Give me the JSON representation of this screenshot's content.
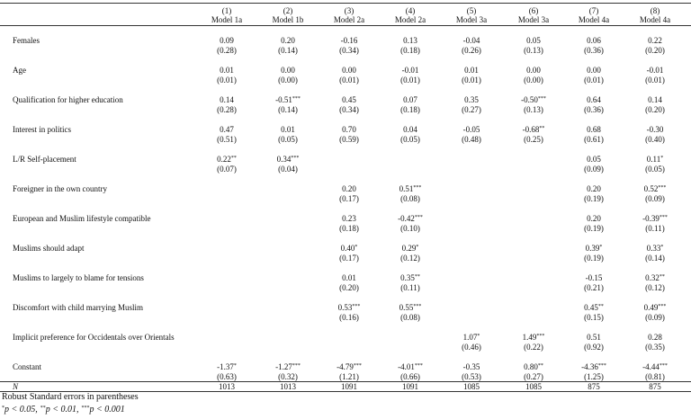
{
  "table": {
    "header": {
      "numbers": [
        "(1)",
        "(2)",
        "(3)",
        "(4)",
        "(5)",
        "(6)",
        "(7)",
        "(8)"
      ],
      "models": [
        "Model 1a",
        "Model 1b",
        "Model 2a",
        "Model 2a",
        "Model 3a",
        "Model 3a",
        "Model 4a",
        "Model 4a"
      ]
    },
    "rows": [
      {
        "label": "Females",
        "coef": [
          "0.09",
          "0.20",
          "-0.16",
          "0.13",
          "-0.04",
          "0.05",
          "0.06",
          "0.22"
        ],
        "stars": [
          null,
          null,
          null,
          null,
          null,
          null,
          null,
          null
        ],
        "se": [
          "(0.28)",
          "(0.14)",
          "(0.34)",
          "(0.18)",
          "(0.26)",
          "(0.13)",
          "(0.36)",
          "(0.20)"
        ]
      },
      {
        "label": "Age",
        "coef": [
          "0.01",
          "0.00",
          "0.00",
          "-0.01",
          "0.01",
          "0.00",
          "0.00",
          "-0.01"
        ],
        "stars": [
          null,
          null,
          null,
          null,
          null,
          null,
          null,
          null
        ],
        "se": [
          "(0.01)",
          "(0.00)",
          "(0.01)",
          "(0.01)",
          "(0.01)",
          "(0.00)",
          "(0.01)",
          "(0.01)"
        ]
      },
      {
        "label": "Qualification for higher education",
        "coef": [
          "0.14",
          "-0.51",
          "0.45",
          "0.07",
          "0.35",
          "-0.50",
          "0.64",
          "0.14"
        ],
        "stars": [
          null,
          "***",
          null,
          null,
          null,
          "***",
          null,
          null
        ],
        "se": [
          "(0.28)",
          "(0.14)",
          "(0.34)",
          "(0.18)",
          "(0.27)",
          "(0.13)",
          "(0.36)",
          "(0.20)"
        ]
      },
      {
        "label": "Interest in politics",
        "coef": [
          "0.47",
          "0.01",
          "0.70",
          "0.04",
          "-0.05",
          "-0.68",
          "0.68",
          "-0.30"
        ],
        "stars": [
          null,
          null,
          null,
          null,
          null,
          "**",
          null,
          null
        ],
        "se": [
          "(0.51)",
          "(0.05)",
          "(0.59)",
          "(0.05)",
          "(0.48)",
          "(0.25)",
          "(0.61)",
          "(0.40)"
        ]
      },
      {
        "label": "L/R Self-placement",
        "coef": [
          "0.22",
          "0.34",
          null,
          null,
          null,
          null,
          "0.05",
          "0.11"
        ],
        "stars": [
          "**",
          "***",
          null,
          null,
          null,
          null,
          null,
          "*"
        ],
        "se": [
          "(0.07)",
          "(0.04)",
          null,
          null,
          null,
          null,
          "(0.09)",
          "(0.05)"
        ]
      },
      {
        "label": "Foreigner in the own country",
        "coef": [
          null,
          null,
          "0.20",
          "0.51",
          null,
          null,
          "0.20",
          "0.52"
        ],
        "stars": [
          null,
          null,
          null,
          "***",
          null,
          null,
          null,
          "***"
        ],
        "se": [
          null,
          null,
          "(0.17)",
          "(0.08)",
          null,
          null,
          "(0.19)",
          "(0.09)"
        ]
      },
      {
        "label": "European and Muslim lifestyle compatible",
        "coef": [
          null,
          null,
          "0.23",
          "-0.42",
          null,
          null,
          "0.20",
          "-0.39"
        ],
        "stars": [
          null,
          null,
          null,
          "***",
          null,
          null,
          null,
          "***"
        ],
        "se": [
          null,
          null,
          "(0.18)",
          "(0.10)",
          null,
          null,
          "(0.19)",
          "(0.11)"
        ]
      },
      {
        "label": "Muslims should adapt",
        "coef": [
          null,
          null,
          "0.40",
          "0.29",
          null,
          null,
          "0.39",
          "0.33"
        ],
        "stars": [
          null,
          null,
          "*",
          "*",
          null,
          null,
          "*",
          "*"
        ],
        "se": [
          null,
          null,
          "(0.17)",
          "(0.12)",
          null,
          null,
          "(0.19)",
          "(0.14)"
        ]
      },
      {
        "label": "Muslims to largely to blame for tensions",
        "coef": [
          null,
          null,
          "0.01",
          "0.35",
          null,
          null,
          "-0.15",
          "0.32"
        ],
        "stars": [
          null,
          null,
          null,
          "**",
          null,
          null,
          null,
          "**"
        ],
        "se": [
          null,
          null,
          "(0.20)",
          "(0.11)",
          null,
          null,
          "(0.21)",
          "(0.12)"
        ]
      },
      {
        "label": "Discomfort with child marrying Muslim",
        "coef": [
          null,
          null,
          "0.53",
          "0.55",
          null,
          null,
          "0.45",
          "0.49"
        ],
        "stars": [
          null,
          null,
          "***",
          "***",
          null,
          null,
          "**",
          "***"
        ],
        "se": [
          null,
          null,
          "(0.16)",
          "(0.08)",
          null,
          null,
          "(0.15)",
          "(0.09)"
        ]
      },
      {
        "label": "Implicit preference for Occidentals over Orientals",
        "coef": [
          null,
          null,
          null,
          null,
          "1.07",
          "1.49",
          "0.51",
          "0.28"
        ],
        "stars": [
          null,
          null,
          null,
          null,
          "*",
          "***",
          null,
          null
        ],
        "se": [
          null,
          null,
          null,
          null,
          "(0.46)",
          "(0.22)",
          "(0.92)",
          "(0.35)"
        ]
      },
      {
        "label": "Constant",
        "coef": [
          "-1.37",
          "-1.27",
          "-4.79",
          "-4.01",
          "-0.35",
          "0.80",
          "-4.36",
          "-4.44"
        ],
        "stars": [
          "*",
          "***",
          "***",
          "***",
          null,
          "**",
          "***",
          "***"
        ],
        "se": [
          "(0.63)",
          "(0.32)",
          "(1.21)",
          "(0.66)",
          "(0.53)",
          "(0.27)",
          "(1.25)",
          "(0.81)"
        ]
      }
    ],
    "n_row": {
      "label": "N",
      "values": [
        "1013",
        "1013",
        "1091",
        "1091",
        "1085",
        "1085",
        "875",
        "875"
      ]
    },
    "notes": {
      "robust": "Robust Standard errors in parentheses",
      "significance": [
        {
          "stars": "*",
          "text": "p < 0.05,"
        },
        {
          "stars": "**",
          "text": "p < 0.01,"
        },
        {
          "stars": "***",
          "text": "p < 0.001"
        }
      ]
    }
  }
}
